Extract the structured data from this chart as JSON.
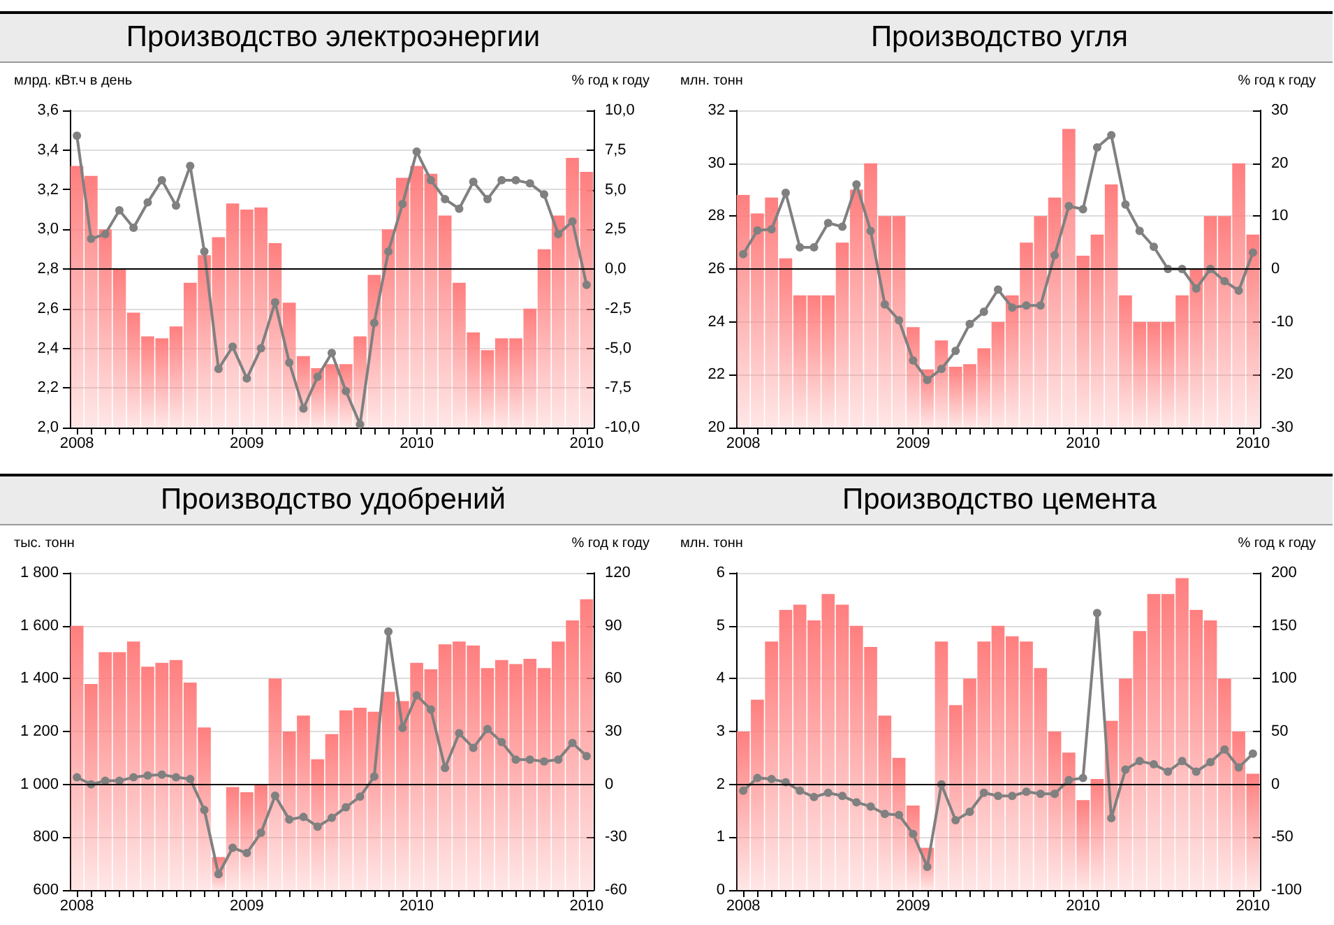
{
  "chart_data": [
    {
      "type": "bar",
      "title": "Производство электроэнергии",
      "ylabel": "млрд. кВт.ч в день",
      "y2label": "% год к году",
      "categories": [
        "2008",
        null,
        null,
        null,
        null,
        null,
        null,
        null,
        null,
        null,
        null,
        null,
        "2009",
        null,
        null,
        null,
        null,
        null,
        null,
        null,
        null,
        null,
        null,
        null,
        "2010",
        null,
        null,
        null,
        null,
        null,
        null,
        null,
        null,
        null,
        null,
        null,
        "2010"
      ],
      "series": [
        {
          "color": "#ff7f7f",
          "values": [
            3.32,
            3.27,
            3.0,
            2.8,
            2.58,
            2.46,
            2.45,
            2.51,
            2.73,
            2.87,
            2.96,
            3.13,
            3.1,
            3.11,
            2.93,
            2.63,
            2.36,
            2.3,
            2.32,
            2.32,
            2.46,
            2.77,
            3.0,
            3.26,
            3.32,
            3.28,
            3.07,
            2.73,
            2.48,
            2.39,
            2.45,
            2.45,
            2.6,
            2.9,
            3.07,
            3.36,
            3.29
          ]
        },
        {
          "type": "line",
          "axis": "y2",
          "color": "#808080",
          "values": [
            8.4,
            1.9,
            2.2,
            3.7,
            2.6,
            4.2,
            5.6,
            4.0,
            6.5,
            1.1,
            -6.3,
            -4.9,
            -6.9,
            -5.0,
            -2.1,
            -5.9,
            -8.8,
            -6.8,
            -5.3,
            -7.7,
            -9.8,
            -3.4,
            1.1,
            4.1,
            7.4,
            5.6,
            4.4,
            3.8,
            5.5,
            4.4,
            5.6,
            5.6,
            5.4,
            4.7,
            2.2,
            3.0,
            -1.0
          ]
        }
      ],
      "ylim": [
        2.0,
        3.6
      ],
      "yticks": [
        {
          "value": 2.0,
          "label": "2,0"
        },
        {
          "value": 2.2,
          "label": "2,2"
        },
        {
          "value": 2.4,
          "label": "2,4"
        },
        {
          "value": 2.6,
          "label": "2,6"
        },
        {
          "value": 2.8,
          "label": "2,8"
        },
        {
          "value": 3.0,
          "label": "3,0"
        },
        {
          "value": 3.2,
          "label": "3,2"
        },
        {
          "value": 3.4,
          "label": "3,4"
        },
        {
          "value": 3.6,
          "label": "3,6"
        }
      ],
      "y2lim": [
        -10,
        10
      ],
      "y2ticks": [
        {
          "value": -10,
          "label": "-10,0"
        },
        {
          "value": -7.5,
          "label": "-7,5"
        },
        {
          "value": -5,
          "label": "-5,0"
        },
        {
          "value": -2.5,
          "label": "-2,5"
        },
        {
          "value": 0,
          "label": "0,0"
        },
        {
          "value": 2.5,
          "label": "2,5"
        },
        {
          "value": 5,
          "label": "5,0"
        },
        {
          "value": 7.5,
          "label": "7,5"
        },
        {
          "value": 10,
          "label": "10,0"
        }
      ],
      "ref_lines": [
        {
          "axis": "y2",
          "value": 0,
          "color": "#000000"
        }
      ],
      "grid": "y",
      "marker": "circle",
      "line_style": "solid"
    },
    {
      "type": "bar",
      "title": "Производство угля",
      "ylabel": "млн. тонн",
      "y2label": "% год к году",
      "categories": [
        "2008",
        null,
        null,
        null,
        null,
        null,
        null,
        null,
        null,
        null,
        null,
        null,
        "2009",
        null,
        null,
        null,
        null,
        null,
        null,
        null,
        null,
        null,
        null,
        null,
        "2010",
        null,
        null,
        null,
        null,
        null,
        null,
        null,
        null,
        null,
        null,
        null,
        "2010"
      ],
      "series": [
        {
          "color": "#ff7f7f",
          "values": [
            28.8,
            28.1,
            28.7,
            26.4,
            25.0,
            25.0,
            25.0,
            27.0,
            29.0,
            30.0,
            28.0,
            28.0,
            23.8,
            22.2,
            23.3,
            22.3,
            22.4,
            23.0,
            24.0,
            25.0,
            27.0,
            28.0,
            28.7,
            31.3,
            26.5,
            27.3,
            29.2,
            25.0,
            24.0,
            24.0,
            24.0,
            25.0,
            26.0,
            28.0,
            28.0,
            30.0,
            27.3
          ]
        },
        {
          "type": "line",
          "axis": "y2",
          "color": "#808080",
          "values": [
            2.8,
            7.3,
            7.5,
            14.4,
            4.1,
            4.1,
            8.7,
            8.0,
            16.0,
            7.2,
            -6.7,
            -9.7,
            -17.3,
            -21.0,
            -18.9,
            -15.5,
            -10.4,
            -8.1,
            -3.9,
            -7.3,
            -6.9,
            -6.9,
            2.6,
            11.9,
            11.3,
            23.0,
            25.3,
            12.2,
            7.2,
            4.2,
            0,
            0,
            -3.7,
            0,
            -2.3,
            -4.1,
            3.1
          ]
        }
      ],
      "ylim": [
        20,
        32
      ],
      "yticks": [
        20,
        22,
        24,
        26,
        28,
        30,
        32
      ],
      "y2lim": [
        -30,
        30
      ],
      "y2ticks": [
        -30,
        -20,
        -10,
        0,
        10,
        20,
        30
      ],
      "ref_lines": [
        {
          "axis": "y2",
          "value": 0,
          "color": "#000000"
        }
      ],
      "grid": "y",
      "marker": "circle",
      "line_style": "solid"
    },
    {
      "type": "bar",
      "title": "Производство удобрений",
      "ylabel": "тыс. тонн",
      "y2label": "% год к году",
      "categories": [
        "2008",
        null,
        null,
        null,
        null,
        null,
        null,
        null,
        null,
        null,
        null,
        null,
        "2009",
        null,
        null,
        null,
        null,
        null,
        null,
        null,
        null,
        null,
        null,
        null,
        "2010",
        null,
        null,
        null,
        null,
        null,
        null,
        null,
        null,
        null,
        null,
        null,
        "2010"
      ],
      "series": [
        {
          "color": "#ff7f7f",
          "values": [
            1600,
            1380,
            1500,
            1500,
            1540,
            1445,
            1460,
            1470,
            1385,
            1215,
            725,
            990,
            970,
            1000,
            1400,
            1200,
            1260,
            1095,
            1190,
            1280,
            1290,
            1275,
            1350,
            1315,
            1460,
            1435,
            1530,
            1540,
            1525,
            1440,
            1470,
            1455,
            1475,
            1440,
            1540,
            1620,
            1700
          ]
        },
        {
          "type": "line",
          "axis": "y2",
          "color": "#808080",
          "values": [
            4,
            0,
            2,
            2,
            4,
            5,
            5.5,
            4,
            3,
            -14.5,
            -51,
            -36,
            -39,
            -27.5,
            -6.5,
            -20,
            -18.5,
            -24,
            -19,
            -13,
            -7,
            4.4,
            86.7,
            32,
            50.5,
            42.5,
            9.3,
            29,
            20.7,
            31.4,
            24,
            14,
            14,
            13,
            14,
            23.5,
            16
          ]
        }
      ],
      "ylim": [
        600,
        1800
      ],
      "yticks": [
        600,
        800,
        {
          "value": 1000,
          "label": "1 000"
        },
        {
          "value": 1200,
          "label": "1 200"
        },
        {
          "value": 1400,
          "label": "1 400"
        },
        {
          "value": 1600,
          "label": "1 600"
        },
        {
          "value": 1800,
          "label": "1 800"
        }
      ],
      "y2lim": [
        -60,
        120
      ],
      "y2ticks": [
        -60,
        -30,
        0,
        30,
        60,
        90,
        120
      ],
      "ref_lines": [
        {
          "axis": "y2",
          "value": 0,
          "color": "#000000"
        }
      ],
      "grid": "y",
      "marker": "circle",
      "line_style": "solid"
    },
    {
      "type": "bar",
      "title": "Производство цемента",
      "ylabel": "млн. тонн",
      "y2label": "% год к году",
      "categories": [
        "2008",
        null,
        null,
        null,
        null,
        null,
        null,
        null,
        null,
        null,
        null,
        null,
        "2009",
        null,
        null,
        null,
        null,
        null,
        null,
        null,
        null,
        null,
        null,
        null,
        "2010",
        null,
        null,
        null,
        null,
        null,
        null,
        null,
        null,
        null,
        null,
        null,
        "2010"
      ],
      "series": [
        {
          "color": "#ff7f7f",
          "values": [
            3.0,
            3.6,
            4.7,
            5.3,
            5.4,
            5.1,
            5.6,
            5.4,
            5.0,
            4.6,
            3.3,
            2.5,
            1.6,
            0.8,
            4.7,
            3.5,
            4.0,
            4.7,
            5.0,
            4.8,
            4.7,
            4.2,
            3.0,
            2.6,
            1.7,
            2.1,
            3.2,
            4.0,
            4.9,
            5.6,
            5.6,
            5.9,
            5.3,
            5.1,
            4.0,
            3.0,
            2.2
          ]
        },
        {
          "type": "line",
          "axis": "y2",
          "color": "#808080",
          "values": [
            -6,
            6,
            5,
            2,
            -6,
            -12,
            -8,
            -11,
            -17,
            -21,
            -28,
            -29,
            -47,
            -78,
            0,
            -34,
            -26,
            -8,
            -11,
            -11,
            -7,
            -9,
            -9,
            4,
            6,
            162,
            -32,
            14,
            22,
            19,
            12,
            22,
            12,
            21,
            33,
            16,
            29
          ]
        }
      ],
      "ylim": [
        0,
        6
      ],
      "yticks": [
        0,
        1,
        2,
        3,
        4,
        5,
        6
      ],
      "y2lim": [
        -100,
        200
      ],
      "y2ticks": [
        -100,
        -50,
        0,
        50,
        100,
        150,
        200
      ],
      "ref_lines": [
        {
          "axis": "y2",
          "value": 0,
          "color": "#000000"
        }
      ],
      "grid": "y",
      "marker": "circle",
      "line_style": "solid"
    }
  ]
}
